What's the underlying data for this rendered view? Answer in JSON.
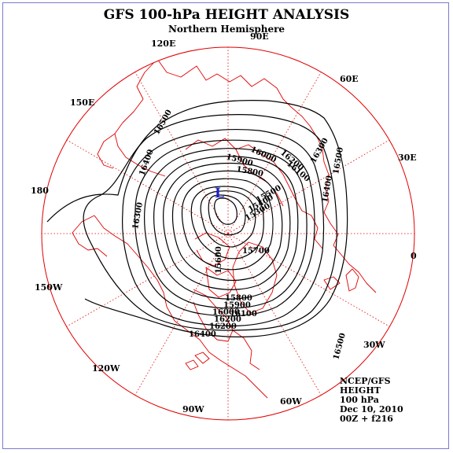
{
  "title": "GFS 100-hPa HEIGHT ANALYSIS",
  "subtitle": "Northern Hemisphere",
  "longitude_labels": [
    {
      "text": "90E",
      "lon": 90
    },
    {
      "text": "60E",
      "lon": 60
    },
    {
      "text": "30E",
      "lon": 30
    },
    {
      "text": "0",
      "lon": 0
    },
    {
      "text": "30W",
      "lon": -30
    },
    {
      "text": "60W",
      "lon": -60
    },
    {
      "text": "90W",
      "lon": -90
    },
    {
      "text": "120W",
      "lon": -120
    },
    {
      "text": "150W",
      "lon": -150
    },
    {
      "text": "180",
      "lon": 180
    },
    {
      "text": "150E",
      "lon": 150
    },
    {
      "text": "120E",
      "lon": 120
    }
  ],
  "contour_labels": [
    "16500",
    "16400",
    "16300",
    "16200",
    "16100",
    "16000",
    "15900",
    "15800",
    "15700",
    "15600",
    "15500",
    "15400",
    "15300"
  ],
  "low_center": "L",
  "info_lines": [
    "NCEP/GFS",
    "HEIGHT",
    "100 hPa",
    "Dec 10, 2010",
    "00Z + f216"
  ],
  "colors": {
    "contour": "#000000",
    "map": "#e00000",
    "low": "#1d1dcf",
    "frame": "#7a7ad0"
  }
}
